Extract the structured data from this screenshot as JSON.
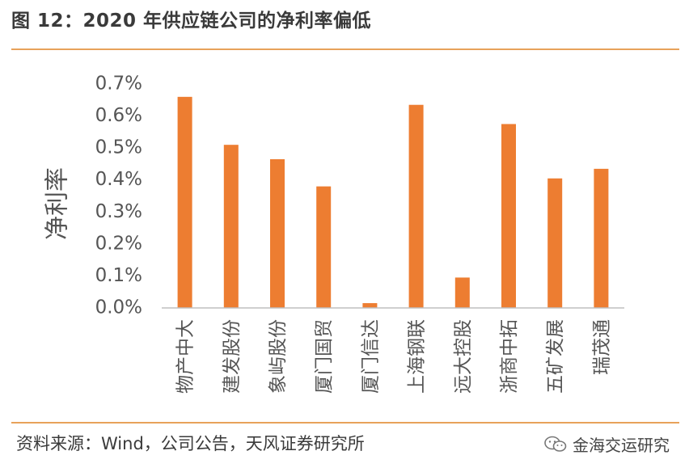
{
  "header": {
    "title": "图 12：2020 年供应链公司的净利率偏低"
  },
  "footer": {
    "source": "资料来源：Wind，公司公告，天风证券研究所",
    "brand": "金海交运研究"
  },
  "icons": {
    "brand": "wechat-icon"
  },
  "colors": {
    "bar": "#ed7d31",
    "rule": "#e8a25a",
    "axis": "#bfbfbf"
  },
  "chart_data": {
    "type": "bar",
    "title": "",
    "xlabel": "",
    "ylabel": "净利率",
    "categories": [
      "物产中大",
      "建发股份",
      "象屿股份",
      "厦门国贸",
      "厦门信达",
      "上海钢联",
      "远大控股",
      "浙商中拓",
      "五矿发展",
      "瑞茂通"
    ],
    "values": [
      0.66,
      0.51,
      0.465,
      0.38,
      0.015,
      0.635,
      0.095,
      0.575,
      0.405,
      0.435
    ],
    "ylim": [
      0,
      0.7
    ],
    "yticks": [
      0,
      0.1,
      0.2,
      0.3,
      0.4,
      0.5,
      0.6,
      0.7
    ],
    "ytick_labels": [
      "0.0%",
      "0.1%",
      "0.2%",
      "0.3%",
      "0.4%",
      "0.5%",
      "0.6%",
      "0.7%"
    ],
    "grid": false,
    "legend": "none"
  }
}
